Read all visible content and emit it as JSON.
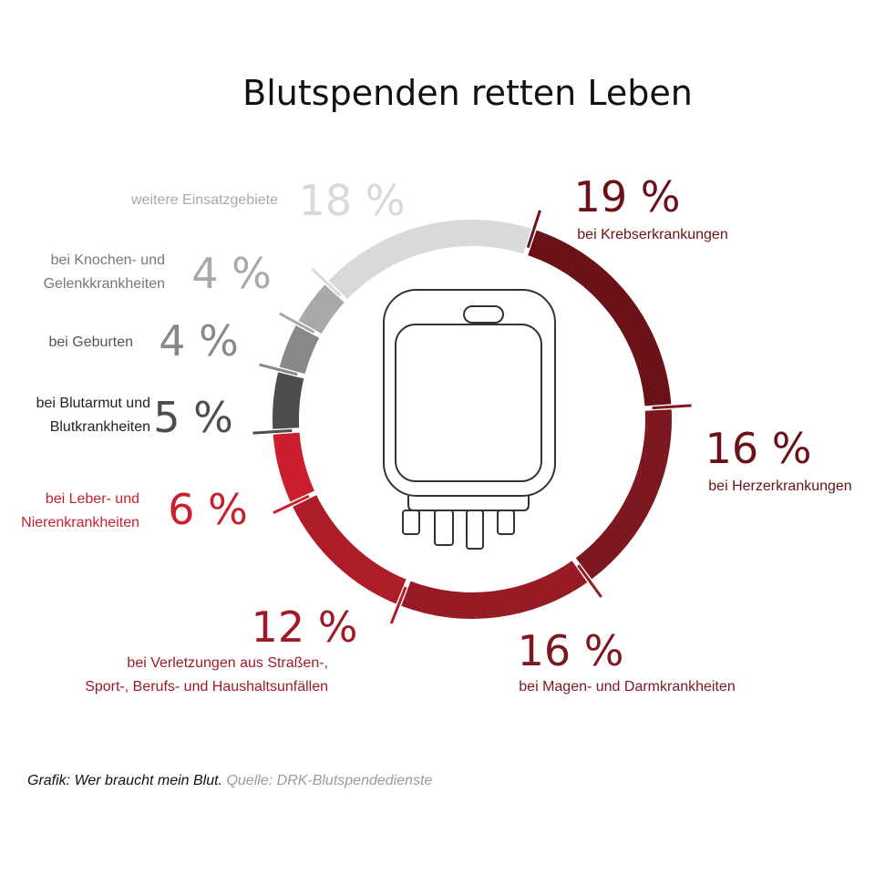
{
  "title": "Blutspenden retten Leben",
  "chart_data": {
    "type": "pie",
    "style": "donut",
    "title": "Blutspenden retten Leben",
    "slices": [
      {
        "value": 19,
        "percent_label": "19 %",
        "label_lines": [
          "bei Krebserkrankungen"
        ],
        "color": "#6b1218"
      },
      {
        "value": 16,
        "percent_label": "16 %",
        "label_lines": [
          "bei Herzerkrankungen"
        ],
        "color": "#7d1720"
      },
      {
        "value": 16,
        "percent_label": "16 %",
        "label_lines": [
          "bei Magen- und Darmkrankheiten"
        ],
        "color": "#961b25"
      },
      {
        "value": 12,
        "percent_label": "12 %",
        "label_lines": [
          "bei Verletzungen aus Straßen-,",
          "Sport-, Berufs- und Haushaltsunfällen"
        ],
        "color": "#ae1c2a"
      },
      {
        "value": 6,
        "percent_label": "6 %",
        "label_lines": [
          "bei Leber- und",
          "Nierenkrankheiten"
        ],
        "color": "#cc1f2e"
      },
      {
        "value": 5,
        "percent_label": "5 %",
        "label_lines": [
          "bei Blutarmut und",
          "Blutkrankheiten"
        ],
        "color": "#4d4d4d"
      },
      {
        "value": 4,
        "percent_label": "4 %",
        "label_lines": [
          "bei Geburten"
        ],
        "color": "#888888"
      },
      {
        "value": 4,
        "percent_label": "4 %",
        "label_lines": [
          "bei Knochen- und",
          "Gelenkkrankheiten"
        ],
        "color": "#a9a9a9"
      },
      {
        "value": 18,
        "percent_label": "18 %",
        "label_lines": [
          "weitere Einsatzgebiete"
        ],
        "color": "#d9d9d9"
      }
    ],
    "center_icon": "blood-bag-icon"
  },
  "footer": {
    "graphic": "Grafik: Wer braucht mein Blut.",
    "source": "Quelle: DRK-Blutspendedienste"
  }
}
